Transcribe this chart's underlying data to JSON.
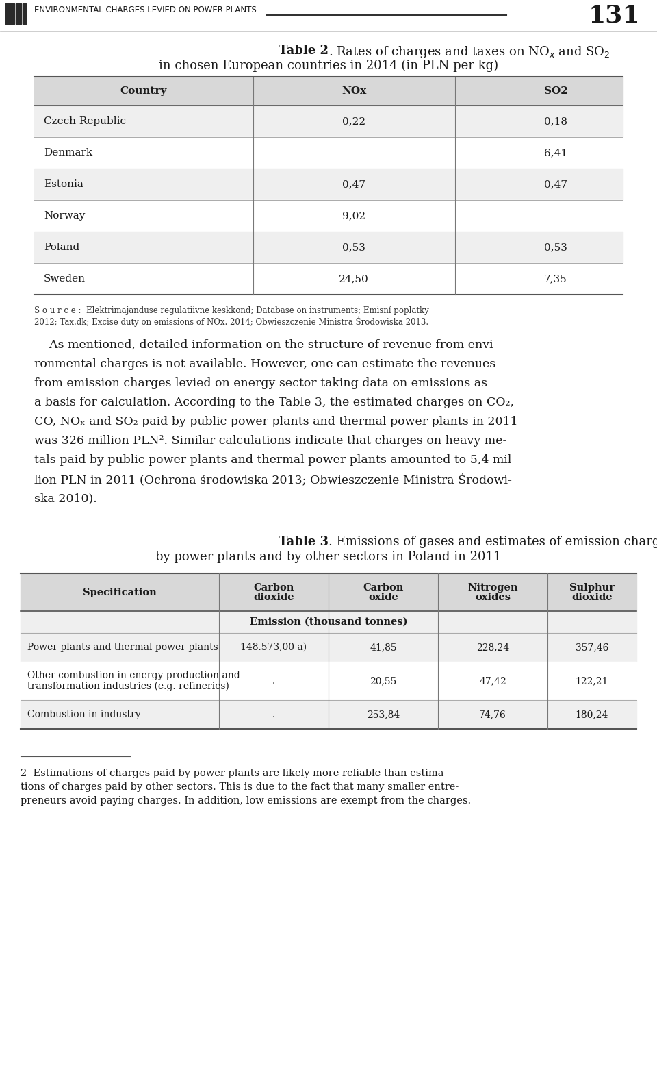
{
  "header_text": "ENVIRONMENTAL CHARGES LEVIED ON POWER PLANTS",
  "page_number": "131",
  "table2_title_line1_bold": "Table 2",
  "table2_title_line1_rest": ". Rates of charges and taxes on NO",
  "table2_title_line1_sub1": "x",
  "table2_title_line1_mid": " and SO",
  "table2_title_line1_sub2": "2",
  "table2_subtitle": "in chosen European countries in 2014 (in PLN per kg)",
  "table2_columns": [
    "Country",
    "NOx",
    "SO2"
  ],
  "table2_rows": [
    [
      "Czech Republic",
      "0,22",
      "0,18"
    ],
    [
      "Denmark",
      "–",
      "6,41"
    ],
    [
      "Estonia",
      "0,47",
      "0,47"
    ],
    [
      "Norway",
      "9,02",
      "–"
    ],
    [
      "Poland",
      "0,53",
      "0,53"
    ],
    [
      "Sweden",
      "24,50",
      "7,35"
    ]
  ],
  "table2_source_line1": "S o u r c e :  Elektrimajanduse regulatiivne keskkond; Database on instruments; Emisní poplatky",
  "table2_source_line2": "2012; Tax.dk; Excise duty on emissions of NOx. 2014; Obwieszczenie Ministra Środowiska 2013.",
  "para_lines": [
    "    As mentioned, detailed information on the structure of revenue from envi-",
    "ronmental charges is not available. However, one can estimate the revenues",
    "from emission charges levied on energy sector taking data on emissions as",
    "a basis for calculation. According to the Table 3, the estimated charges on CO₂,",
    "CO, NOₓ and SO₂ paid by public power plants and thermal power plants in 2011",
    "was 326 million PLN². Similar calculations indicate that charges on heavy me-",
    "tals paid by public power plants and thermal power plants amounted to 5,4 mil-",
    "lion PLN in 2011 (Ochrona środowiska 2013; Obwieszczenie Ministra Środowi-",
    "ska 2010)."
  ],
  "table3_title_bold": "Table 3",
  "table3_title_rest": ". Emissions of gases and estimates of emission charges paid",
  "table3_title_line2": "by power plants and by other sectors in Poland in 2011",
  "table3_col_headers": [
    "Specification",
    "Carbon\ndioxide",
    "Carbon\noxide",
    "Nitrogen\noxides",
    "Sulphur\ndioxide"
  ],
  "table3_subheader": "Emission (thousand tonnes)",
  "table3_rows": [
    [
      "Power plants and thermal power plants",
      "148.573,00 a)",
      "41,85",
      "228,24",
      "357,46"
    ],
    [
      "Other combustion in energy production and\ntransformation industries (e.g. refineries)",
      ".",
      "20,55",
      "47,42",
      "122,21"
    ],
    [
      "Combustion in industry",
      ".",
      "253,84",
      "74,76",
      "180,24"
    ]
  ],
  "footnote_lines": [
    "2  Estimations of charges paid by power plants are likely more reliable than estima-",
    "tions of charges paid by other sectors. This is due to the fact that many smaller entre-",
    "preneurs avoid paying charges. In addition, low emissions are exempt from the charges."
  ],
  "bg_color": "#ffffff",
  "table_header_bg": "#d8d8d8",
  "table_row_odd": "#efefef",
  "table_row_even": "#ffffff",
  "text_color": "#1a1a1a",
  "source_text_color": "#333333",
  "line_color": "#555555",
  "sep_color": "#aaaaaa"
}
